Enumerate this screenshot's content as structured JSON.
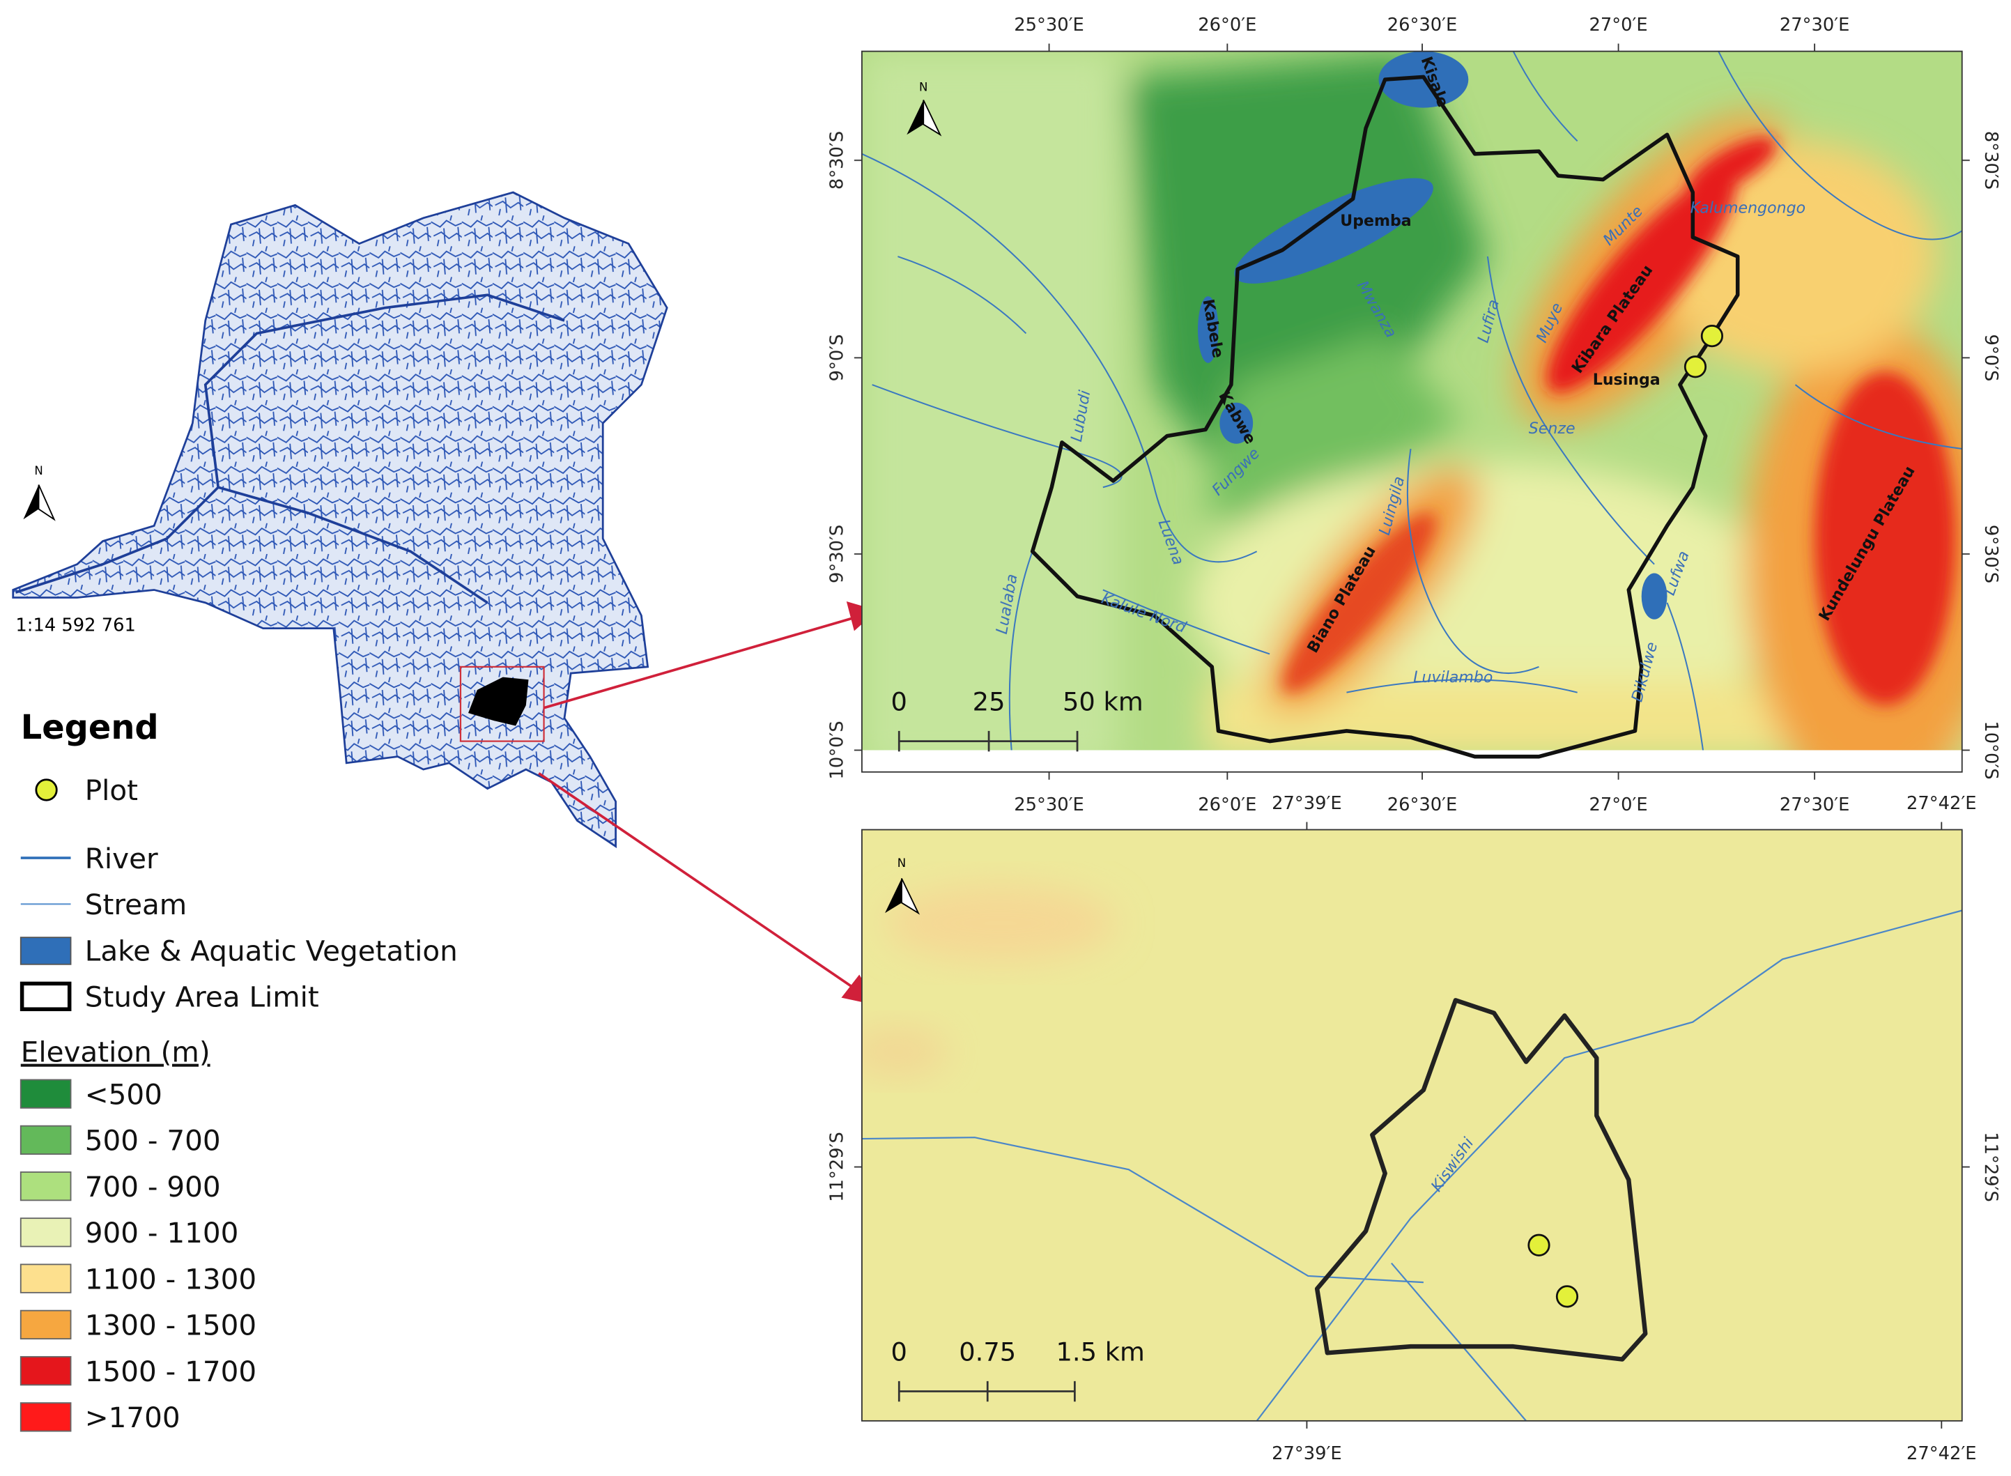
{
  "overview": {
    "north": "N",
    "scale": "1:14 592 761"
  },
  "legend": {
    "title": "Legend",
    "items": [
      "Plot",
      "River",
      "Stream",
      "Lake & Aquatic Vegetation",
      "Study Area Limit"
    ],
    "elevation": {
      "title": "Elevation (m)",
      "classes": [
        {
          "label": "<500",
          "color": "#1f8c3b"
        },
        {
          "label": "500 - 700",
          "color": "#63b95a"
        },
        {
          "label": "700 - 900",
          "color": "#ade07e"
        },
        {
          "label": "900 - 1100",
          "color": "#e9f2b6"
        },
        {
          "label": "1100 - 1300",
          "color": "#fde08e"
        },
        {
          "label": "1300 - 1500",
          "color": "#f6a740"
        },
        {
          "label": "1500 - 1700",
          "color": "#e5161c"
        },
        {
          "label": ">1700",
          "color": "#ff1a1a"
        }
      ]
    }
  },
  "map1": {
    "north": "N",
    "x_labels": [
      "25°30′E",
      "26°0′E",
      "26°30′E",
      "27°0′E",
      "27°30′E"
    ],
    "y_labels": [
      "8°30′S",
      "9°0′S",
      "9°30′S",
      "10°0′S"
    ],
    "scale_bar": [
      "0",
      "25",
      "50 km"
    ],
    "places": [
      "Kisale",
      "Upemba",
      "Kabele",
      "Kabwe",
      "Mwanza",
      "Lufira",
      "Muye",
      "Munte",
      "Kalumengongo",
      "Kibara Plateau",
      "Lusinga",
      "Senze",
      "Lubudi",
      "Fungwe",
      "Luena",
      "Lualaba",
      "Kalule Nord",
      "Luingila",
      "Biano Plateau",
      "Luvilambo",
      "Dikulwe",
      "Lufwa",
      "Kundelungu Plateau"
    ]
  },
  "map2": {
    "north": "N",
    "x_labels": [
      "27°39′E",
      "27°42′E"
    ],
    "y_labels": [
      "11°29′S"
    ],
    "scale_bar": [
      "0",
      "0.75",
      "1.5 km"
    ],
    "places": [
      "Kiswishi"
    ]
  }
}
